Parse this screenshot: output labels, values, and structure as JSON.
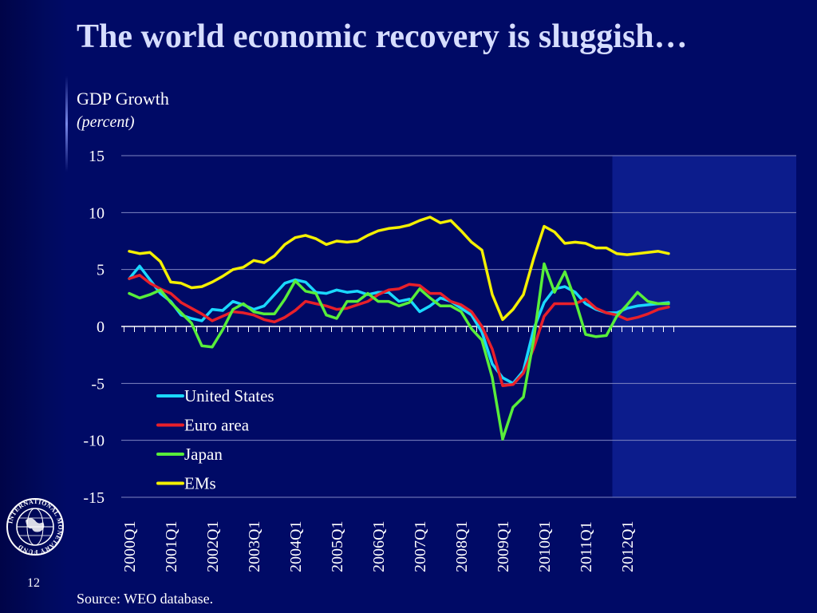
{
  "slide": {
    "title": "The world economic recovery is sluggish…",
    "page_number": "12",
    "source": "Source:  WEO database.",
    "logo_text": "INTERNATIONAL MONETARY FUND"
  },
  "colors": {
    "background": "#000a66",
    "forecast_shade": "#0c1c8c",
    "gridline": "#7f86c2",
    "axis": "#ffffff",
    "title": "#d6ddff"
  },
  "chart_data": {
    "type": "line",
    "title": "GDP Growth",
    "unit_label": "(percent)",
    "xlabel": "",
    "ylabel": "",
    "ylim": [
      -15,
      15
    ],
    "yticks": [
      15,
      10,
      5,
      0,
      -5,
      -10,
      -15
    ],
    "grid": true,
    "legend_position": "lower-left",
    "forecast_shading_start": "2011Q4",
    "x": [
      "2000Q1",
      "2000Q2",
      "2000Q3",
      "2000Q4",
      "2001Q1",
      "2001Q2",
      "2001Q3",
      "2001Q4",
      "2002Q1",
      "2002Q2",
      "2002Q3",
      "2002Q4",
      "2003Q1",
      "2003Q2",
      "2003Q3",
      "2003Q4",
      "2004Q1",
      "2004Q2",
      "2004Q3",
      "2004Q4",
      "2005Q1",
      "2005Q2",
      "2005Q3",
      "2005Q4",
      "2006Q1",
      "2006Q2",
      "2006Q3",
      "2006Q4",
      "2007Q1",
      "2007Q2",
      "2007Q3",
      "2007Q4",
      "2008Q1",
      "2008Q2",
      "2008Q3",
      "2008Q4",
      "2009Q1",
      "2009Q2",
      "2009Q3",
      "2009Q4",
      "2010Q1",
      "2010Q2",
      "2010Q3",
      "2010Q4",
      "2011Q1",
      "2011Q2",
      "2011Q3",
      "2011Q4",
      "2012Q1",
      "2012Q2",
      "2012Q3",
      "2012Q4",
      "2013Q1"
    ],
    "x_tick_labels": [
      "2000Q1",
      "2001Q1",
      "2002Q1",
      "2003Q1",
      "2004Q1",
      "2005Q1",
      "2006Q1",
      "2007Q1",
      "2008Q1",
      "2009Q1",
      "2010Q1",
      "2011Q1",
      "2012Q1"
    ],
    "series": [
      {
        "name": "United States",
        "color": "#1ad8ff",
        "values": [
          4.2,
          5.3,
          4.1,
          2.9,
          2.2,
          1.0,
          0.7,
          0.5,
          1.5,
          1.4,
          2.2,
          1.9,
          1.5,
          1.8,
          2.8,
          3.8,
          4.1,
          3.9,
          3.0,
          2.9,
          3.2,
          3.0,
          3.1,
          2.8,
          3.0,
          3.0,
          2.2,
          2.4,
          1.3,
          1.8,
          2.5,
          2.2,
          1.6,
          1.0,
          -0.5,
          -3.3,
          -4.5,
          -5.0,
          -3.9,
          -0.2,
          2.1,
          3.3,
          3.5,
          3.0,
          2.0,
          1.5,
          1.2,
          1.2,
          1.6,
          1.8,
          1.9,
          2.0,
          2.1
        ]
      },
      {
        "name": "Euro area",
        "color": "#e8202a",
        "values": [
          4.2,
          4.5,
          3.8,
          3.3,
          2.9,
          2.1,
          1.6,
          1.1,
          0.5,
          0.9,
          1.3,
          1.2,
          1.0,
          0.6,
          0.4,
          0.8,
          1.4,
          2.2,
          2.0,
          1.8,
          1.5,
          1.6,
          1.9,
          2.2,
          2.8,
          3.2,
          3.3,
          3.7,
          3.6,
          2.9,
          2.9,
          2.2,
          1.9,
          1.3,
          0.0,
          -2.0,
          -5.2,
          -5.1,
          -4.1,
          -1.9,
          0.9,
          2.0,
          2.0,
          2.0,
          2.4,
          1.6,
          1.2,
          1.0,
          0.6,
          0.8,
          1.1,
          1.5,
          1.7
        ]
      },
      {
        "name": "Japan",
        "color": "#58ee3a",
        "values": [
          2.9,
          2.5,
          2.8,
          3.2,
          2.1,
          1.2,
          0.3,
          -1.7,
          -1.8,
          -0.3,
          1.5,
          2.0,
          1.3,
          1.1,
          1.1,
          2.4,
          4.0,
          3.1,
          2.9,
          1.0,
          0.7,
          2.2,
          2.2,
          2.9,
          2.2,
          2.2,
          1.8,
          2.1,
          3.3,
          2.5,
          1.8,
          1.8,
          1.3,
          -0.2,
          -1.2,
          -4.5,
          -9.9,
          -7.1,
          -6.2,
          -1.1,
          5.5,
          3.0,
          4.8,
          2.3,
          -0.7,
          -0.9,
          -0.8,
          0.9,
          1.9,
          3.0,
          2.2,
          2.0,
          2.0
        ]
      },
      {
        "name": "EMs",
        "color": "#f4f000",
        "values": [
          6.6,
          6.4,
          6.5,
          5.7,
          3.9,
          3.8,
          3.4,
          3.5,
          3.9,
          4.4,
          5.0,
          5.2,
          5.8,
          5.6,
          6.2,
          7.2,
          7.8,
          8.0,
          7.7,
          7.2,
          7.5,
          7.4,
          7.5,
          8.0,
          8.4,
          8.6,
          8.7,
          8.9,
          9.3,
          9.6,
          9.1,
          9.3,
          8.4,
          7.4,
          6.7,
          2.8,
          0.6,
          1.5,
          2.8,
          6.0,
          8.8,
          8.3,
          7.3,
          7.4,
          7.3,
          6.9,
          6.9,
          6.4,
          6.3,
          6.4,
          6.5,
          6.6,
          6.4
        ]
      }
    ]
  }
}
